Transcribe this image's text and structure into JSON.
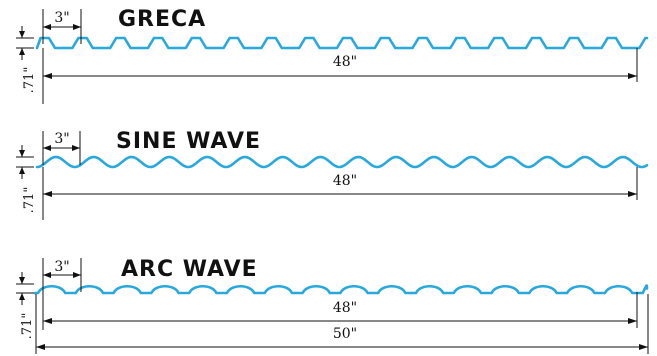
{
  "colors": {
    "profile": "#29a8dc",
    "dimension": "#111111",
    "background": "#ffffff"
  },
  "profiles": [
    {
      "title": "GRECA",
      "shape": "trapezoid",
      "pitch_label": "3\"",
      "height_label": ".71\"",
      "width_labels": [
        "48\""
      ]
    },
    {
      "title": "SINE WAVE",
      "shape": "sine",
      "pitch_label": "3\"",
      "height_label": ".71\"",
      "width_labels": [
        "48\""
      ]
    },
    {
      "title": "ARC WAVE",
      "shape": "arc",
      "pitch_label": "3\"",
      "height_label": ".71\"",
      "width_labels": [
        "48\"",
        "50\""
      ]
    }
  ]
}
